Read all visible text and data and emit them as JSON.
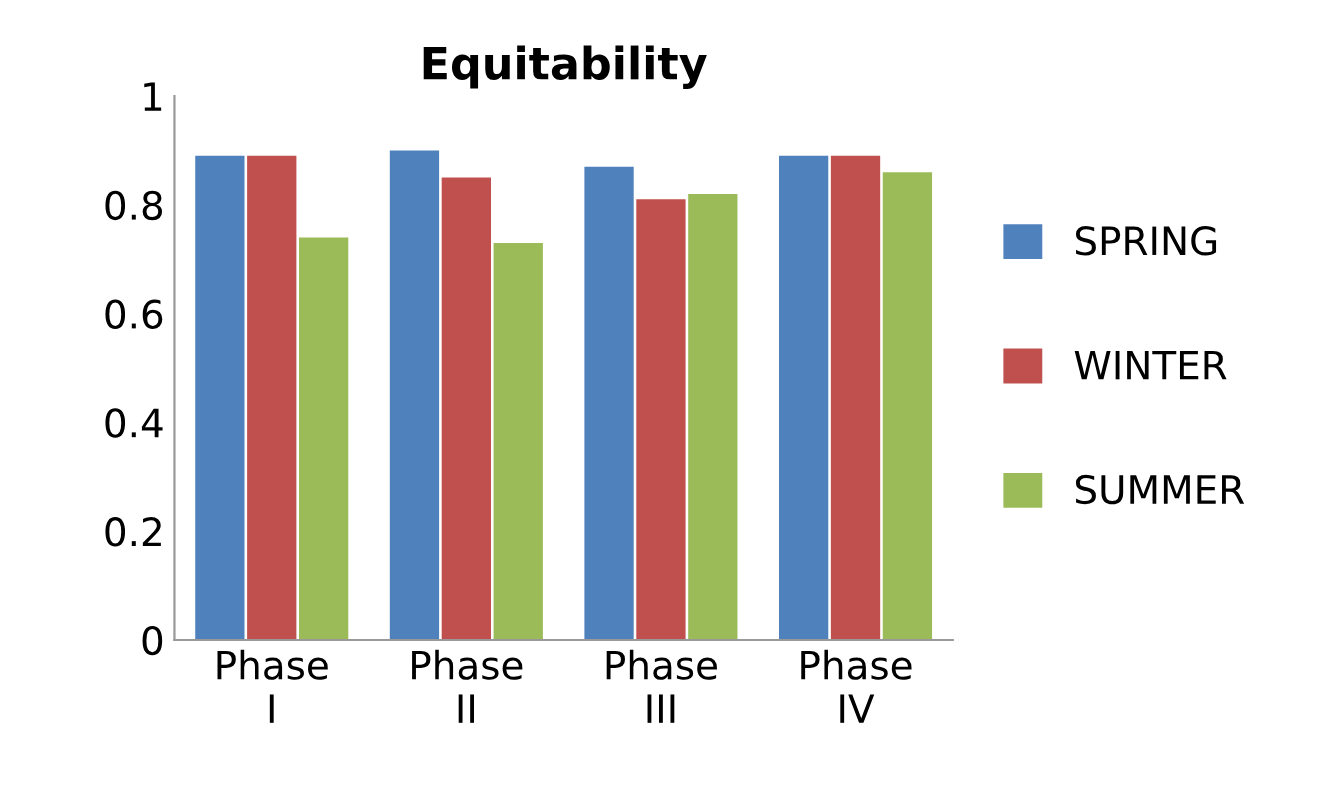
{
  "chart_data": {
    "type": "bar",
    "title": "Equitability",
    "categories": [
      "Phase\nI",
      "Phase\nII",
      "Phase\nIII",
      "Phase\nIV"
    ],
    "series": [
      {
        "name": "SPRING",
        "color": "#4f81bd",
        "values": [
          0.89,
          0.9,
          0.87,
          0.89
        ]
      },
      {
        "name": "WINTER",
        "color": "#c0504d",
        "values": [
          0.89,
          0.85,
          0.81,
          0.89
        ]
      },
      {
        "name": "SUMMER",
        "color": "#9bbb59",
        "values": [
          0.74,
          0.73,
          0.82,
          0.86
        ]
      }
    ],
    "ylim": [
      0,
      1
    ],
    "yticks": [
      0,
      0.2,
      0.4,
      0.6,
      0.8,
      1
    ],
    "grid": false,
    "legend": "right"
  }
}
